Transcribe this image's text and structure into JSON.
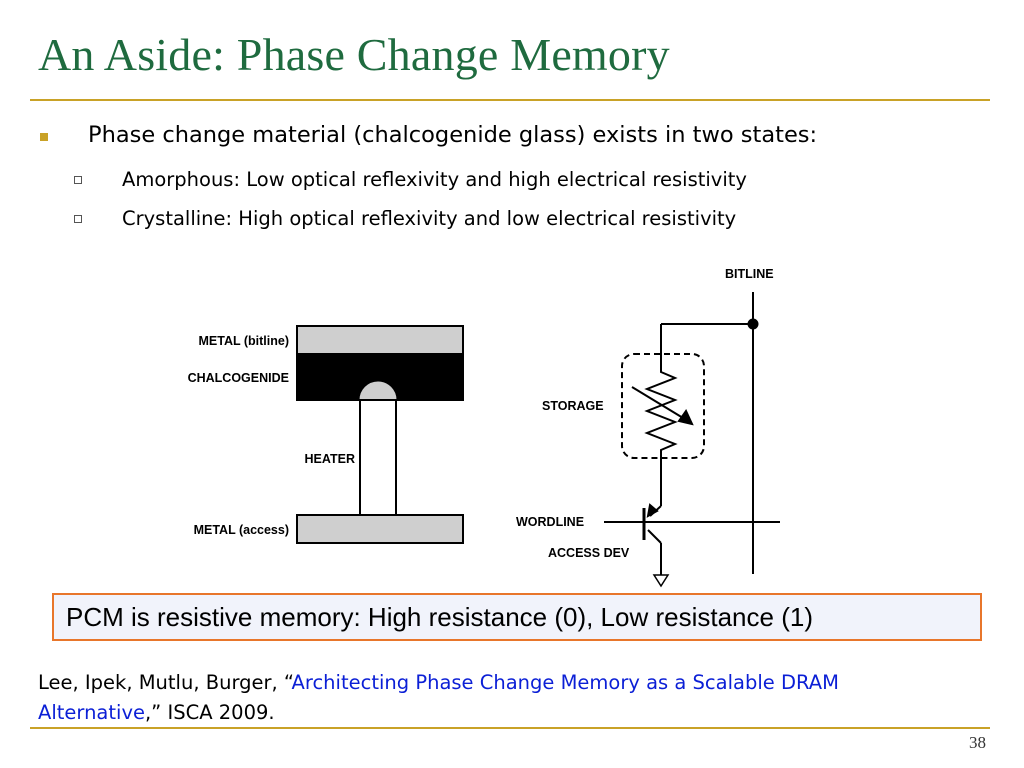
{
  "slide": {
    "title": "An Aside: Phase Change Memory",
    "page_number": "38",
    "colors": {
      "title": "#1f6b3f",
      "rule": "#c9a227",
      "callout_border": "#e8762b",
      "link": "#0b1fd6"
    }
  },
  "bullets": {
    "main": "Phase change material (chalcogenide glass) exists in two states:",
    "sub": [
      "Amorphous: Low optical reflexivity and high electrical resistivity",
      "Crystalline: High optical reflexivity and low electrical resistivity"
    ]
  },
  "cell_diagram": {
    "labels": {
      "metal_bitline": "METAL (bitline)",
      "chalcogenide": "CHALCOGENIDE",
      "heater": "HEATER",
      "metal_access": "METAL (access)"
    }
  },
  "circuit_diagram": {
    "labels": {
      "bitline": "BITLINE",
      "storage": "STORAGE",
      "wordline": "WORDLINE",
      "access_dev": "ACCESS DEV"
    }
  },
  "callout": "PCM is resistive memory:  High resistance (0), Low resistance (1)",
  "reference": {
    "authors": "Lee, Ipek, Mutlu, Burger, “",
    "title_part1": "Architecting Phase Change Memory as a Scalable DRAM",
    "title_part2": "Alternative",
    "tail": ",” ISCA 2009."
  }
}
